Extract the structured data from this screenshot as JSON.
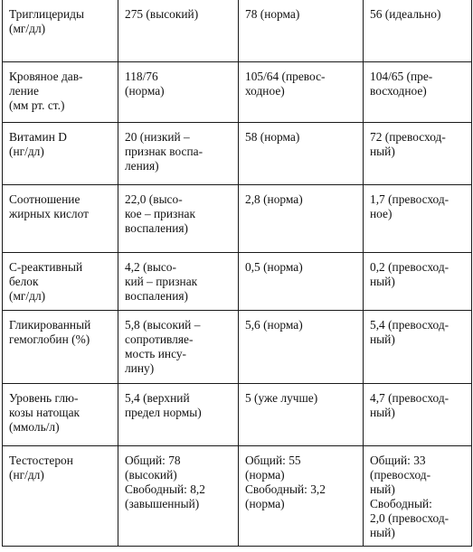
{
  "rows": [
    {
      "label": "Триглицериды\n(мг/дл)",
      "v1": "275 (высокий)",
      "v2": "78 (норма)",
      "v3": "56 (идеально)"
    },
    {
      "label": "Кровяное дав-\nление\n(мм рт. ст.)",
      "v1": "118/76\n(норма)",
      "v2": "105/64 (превос-\nходное)",
      "v3": "104/65 (пре-\nвосходное)"
    },
    {
      "label": "Витамин D\n(нг/дл)",
      "v1": "20 (низкий –\nпризнак воспа-\nления)",
      "v2": "58 (норма)",
      "v3": "72 (превосход-\nный)"
    },
    {
      "label": "Соотношение\nжирных кислот",
      "v1": "22,0 (высо-\nкое – признак\nвоспаления)",
      "v2": "2,8 (норма)",
      "v3": "1,7 (превосход-\nное)"
    },
    {
      "label": "С-реактивный\nбелок\n(мг/дл)",
      "v1": "4,2 (высо-\nкий – признак\nвоспаления)",
      "v2": "0,5 (норма)",
      "v3": "0,2 (превосход-\nный)"
    },
    {
      "label": "Гликированный\nгемоглобин (%)",
      "v1": "5,8 (высокий –\nсопротивляе-\nмость инсу-\nлину)",
      "v2": "5,6 (норма)",
      "v3": "5,4 (превосход-\nный)"
    },
    {
      "label": "Уровень глю-\nкозы натощак\n(ммоль/л)",
      "v1": "5,4 (верхний\nпредел нормы)",
      "v2": "5 (уже лучше)",
      "v3": "4,7 (превосход-\nный)"
    },
    {
      "label": "Тестостерон\n(нг/дл)",
      "v1": "Общий: 78\n(высокий)\nСвободный: 8,2\n(завышенный)",
      "v2": "Общий: 55\n(норма)\nСвободный: 3,2\n(норма)",
      "v3": "Общий: 33\n(превосход-\nный)\nСвободный:\n2,0 (превосход-\nный)"
    }
  ]
}
